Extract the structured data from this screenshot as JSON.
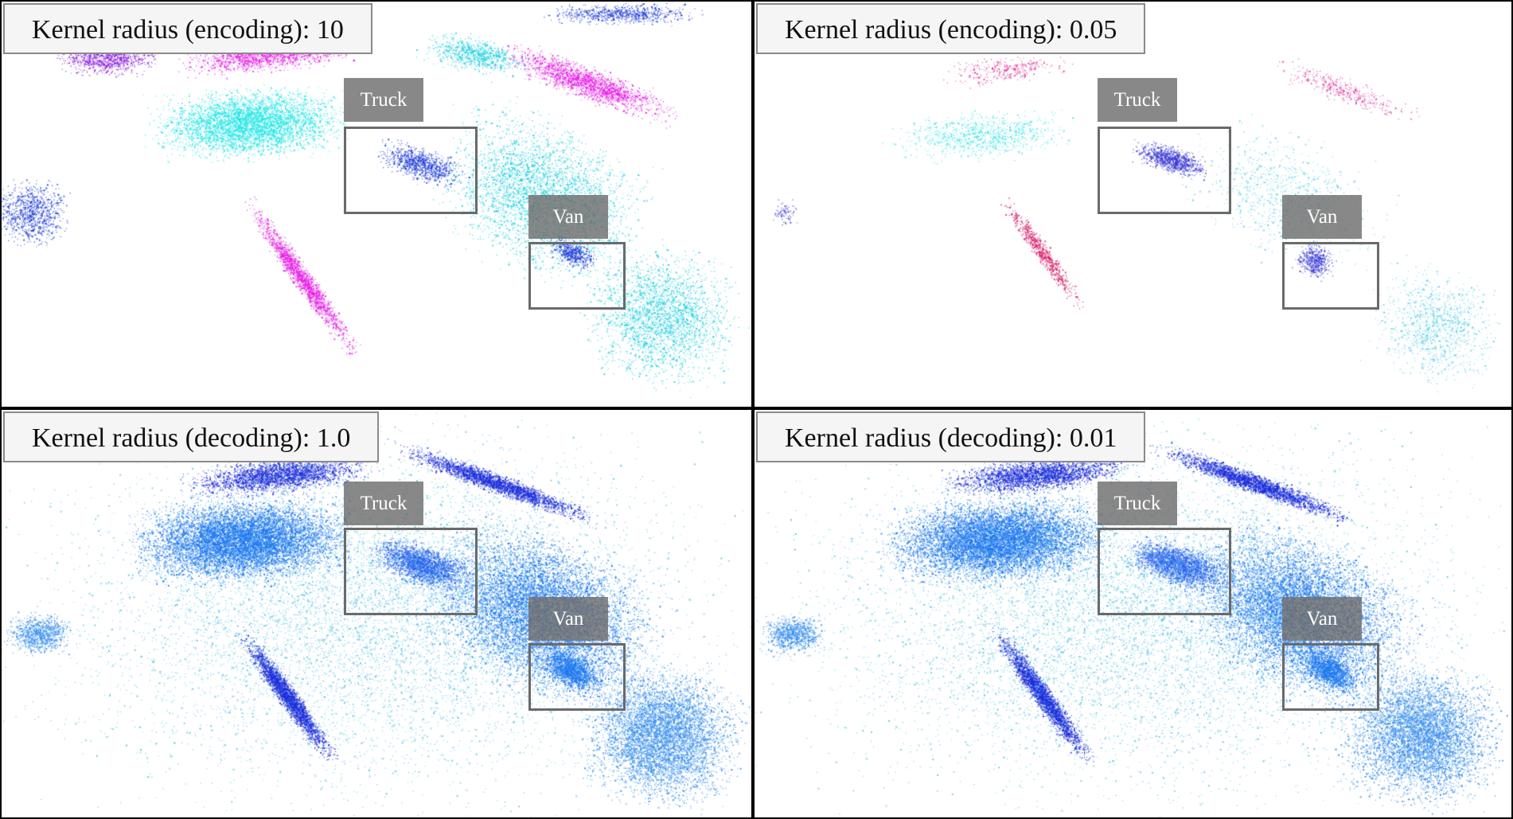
{
  "panels": [
    {
      "id": "enc-10",
      "title": "Kernel radius (encoding): 10",
      "truck_label": "Truck",
      "van_label": "Van",
      "palette": [
        "#1ee6e6",
        "#22d2e0",
        "#e81ee8",
        "#8a1ee0",
        "#1e3cd8"
      ]
    },
    {
      "id": "enc-005",
      "title": "Kernel radius (encoding): 0.05",
      "truck_label": "Truck",
      "van_label": "Van",
      "palette": [
        "#3ee6e6",
        "#5fd0ea",
        "#e23aa0",
        "#d81e6a",
        "#3c3ad8"
      ]
    },
    {
      "id": "dec-1",
      "title": "Kernel radius (decoding): 1.0",
      "truck_label": "Truck",
      "van_label": "Van",
      "palette": [
        "#1e78f0",
        "#2a64ee",
        "#1e2edc",
        "#3a90ee",
        "#60c8e6"
      ]
    },
    {
      "id": "dec-001",
      "title": "Kernel radius (decoding): 0.01",
      "truck_label": "Truck",
      "van_label": "Van",
      "palette": [
        "#1e78f0",
        "#2a64ee",
        "#1e2edc",
        "#3a90ee",
        "#60c8e6"
      ]
    }
  ]
}
